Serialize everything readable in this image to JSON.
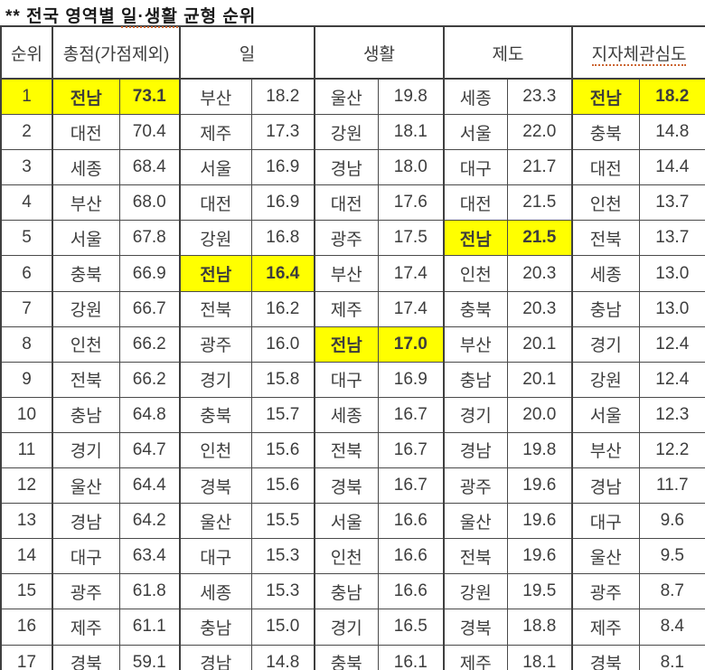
{
  "title": {
    "prefix": "**",
    "before": "전국 영역별",
    "underlined": "일·생활",
    "after": "균형 순위"
  },
  "colors": {
    "highlight": "#ffff00",
    "text": "#3d3d3d",
    "border": "#3f3f3f",
    "underline": "#cc6633"
  },
  "table": {
    "headers": {
      "rank": "순위",
      "groups": [
        {
          "label": "총점(가점제외)"
        },
        {
          "label": "일"
        },
        {
          "label": "생활"
        },
        {
          "label": "제도"
        },
        {
          "label": "지자체관심도"
        }
      ]
    },
    "rows": [
      {
        "rank": "1",
        "rank_hl": true,
        "cells": [
          {
            "region": "전남",
            "value": "73.1",
            "hl": true
          },
          {
            "region": "부산",
            "value": "18.2"
          },
          {
            "region": "울산",
            "value": "19.8"
          },
          {
            "region": "세종",
            "value": "23.3"
          },
          {
            "region": "전남",
            "value": "18.2",
            "hl": true
          }
        ]
      },
      {
        "rank": "2",
        "rank_hl": false,
        "cells": [
          {
            "region": "대전",
            "value": "70.4"
          },
          {
            "region": "제주",
            "value": "17.3"
          },
          {
            "region": "강원",
            "value": "18.1"
          },
          {
            "region": "서울",
            "value": "22.0"
          },
          {
            "region": "충북",
            "value": "14.8"
          }
        ]
      },
      {
        "rank": "3",
        "rank_hl": false,
        "cells": [
          {
            "region": "세종",
            "value": "68.4"
          },
          {
            "region": "서울",
            "value": "16.9"
          },
          {
            "region": "경남",
            "value": "18.0"
          },
          {
            "region": "대구",
            "value": "21.7"
          },
          {
            "region": "대전",
            "value": "14.4"
          }
        ]
      },
      {
        "rank": "4",
        "rank_hl": false,
        "cells": [
          {
            "region": "부산",
            "value": "68.0"
          },
          {
            "region": "대전",
            "value": "16.9"
          },
          {
            "region": "대전",
            "value": "17.6"
          },
          {
            "region": "대전",
            "value": "21.5"
          },
          {
            "region": "인천",
            "value": "13.7"
          }
        ]
      },
      {
        "rank": "5",
        "rank_hl": false,
        "cells": [
          {
            "region": "서울",
            "value": "67.8"
          },
          {
            "region": "강원",
            "value": "16.8"
          },
          {
            "region": "광주",
            "value": "17.5"
          },
          {
            "region": "전남",
            "value": "21.5",
            "hl": true
          },
          {
            "region": "전북",
            "value": "13.7"
          }
        ]
      },
      {
        "rank": "6",
        "rank_hl": false,
        "cells": [
          {
            "region": "충북",
            "value": "66.9"
          },
          {
            "region": "전남",
            "value": "16.4",
            "hl": true
          },
          {
            "region": "부산",
            "value": "17.4"
          },
          {
            "region": "인천",
            "value": "20.3"
          },
          {
            "region": "세종",
            "value": "13.0"
          }
        ]
      },
      {
        "rank": "7",
        "rank_hl": false,
        "cells": [
          {
            "region": "강원",
            "value": "66.7"
          },
          {
            "region": "전북",
            "value": "16.2"
          },
          {
            "region": "제주",
            "value": "17.4"
          },
          {
            "region": "충북",
            "value": "20.3"
          },
          {
            "region": "충남",
            "value": "13.0"
          }
        ]
      },
      {
        "rank": "8",
        "rank_hl": false,
        "cells": [
          {
            "region": "인천",
            "value": "66.2"
          },
          {
            "region": "광주",
            "value": "16.0"
          },
          {
            "region": "전남",
            "value": "17.0",
            "hl": true
          },
          {
            "region": "부산",
            "value": "20.1"
          },
          {
            "region": "경기",
            "value": "12.4"
          }
        ]
      },
      {
        "rank": "9",
        "rank_hl": false,
        "cells": [
          {
            "region": "전북",
            "value": "66.2"
          },
          {
            "region": "경기",
            "value": "15.8"
          },
          {
            "region": "대구",
            "value": "16.9"
          },
          {
            "region": "충남",
            "value": "20.1"
          },
          {
            "region": "강원",
            "value": "12.4"
          }
        ]
      },
      {
        "rank": "10",
        "rank_hl": false,
        "cells": [
          {
            "region": "충남",
            "value": "64.8"
          },
          {
            "region": "충북",
            "value": "15.7"
          },
          {
            "region": "세종",
            "value": "16.7"
          },
          {
            "region": "경기",
            "value": "20.0"
          },
          {
            "region": "서울",
            "value": "12.3"
          }
        ]
      },
      {
        "rank": "11",
        "rank_hl": false,
        "cells": [
          {
            "region": "경기",
            "value": "64.7"
          },
          {
            "region": "인천",
            "value": "15.6"
          },
          {
            "region": "전북",
            "value": "16.7"
          },
          {
            "region": "경남",
            "value": "19.8"
          },
          {
            "region": "부산",
            "value": "12.2"
          }
        ]
      },
      {
        "rank": "12",
        "rank_hl": false,
        "cells": [
          {
            "region": "울산",
            "value": "64.4"
          },
          {
            "region": "경북",
            "value": "15.6"
          },
          {
            "region": "경북",
            "value": "16.7"
          },
          {
            "region": "광주",
            "value": "19.6"
          },
          {
            "region": "경남",
            "value": "11.7"
          }
        ]
      },
      {
        "rank": "13",
        "rank_hl": false,
        "cells": [
          {
            "region": "경남",
            "value": "64.2"
          },
          {
            "region": "울산",
            "value": "15.5"
          },
          {
            "region": "서울",
            "value": "16.6"
          },
          {
            "region": "울산",
            "value": "19.6"
          },
          {
            "region": "대구",
            "value": "9.6"
          }
        ]
      },
      {
        "rank": "14",
        "rank_hl": false,
        "cells": [
          {
            "region": "대구",
            "value": "63.4"
          },
          {
            "region": "대구",
            "value": "15.3"
          },
          {
            "region": "인천",
            "value": "16.6"
          },
          {
            "region": "전북",
            "value": "19.6"
          },
          {
            "region": "울산",
            "value": "9.5"
          }
        ]
      },
      {
        "rank": "15",
        "rank_hl": false,
        "cells": [
          {
            "region": "광주",
            "value": "61.8"
          },
          {
            "region": "세종",
            "value": "15.3"
          },
          {
            "region": "충남",
            "value": "16.6"
          },
          {
            "region": "강원",
            "value": "19.5"
          },
          {
            "region": "광주",
            "value": "8.7"
          }
        ]
      },
      {
        "rank": "16",
        "rank_hl": false,
        "cells": [
          {
            "region": "제주",
            "value": "61.1"
          },
          {
            "region": "충남",
            "value": "15.0"
          },
          {
            "region": "경기",
            "value": "16.5"
          },
          {
            "region": "경북",
            "value": "18.8"
          },
          {
            "region": "제주",
            "value": "8.4"
          }
        ]
      },
      {
        "rank": "17",
        "rank_hl": false,
        "cells": [
          {
            "region": "경북",
            "value": "59.1"
          },
          {
            "region": "경남",
            "value": "14.8"
          },
          {
            "region": "충북",
            "value": "16.1"
          },
          {
            "region": "제주",
            "value": "18.1"
          },
          {
            "region": "경북",
            "value": "8.1"
          }
        ]
      }
    ]
  }
}
